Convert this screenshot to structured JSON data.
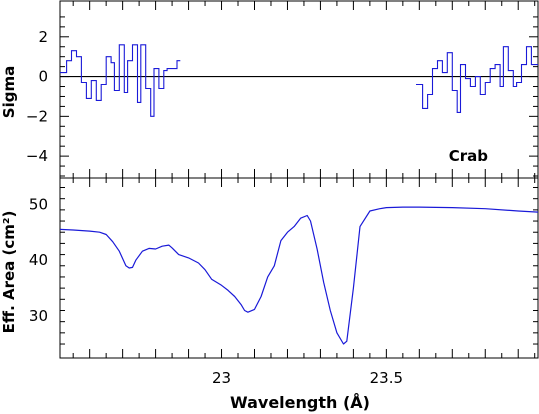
{
  "chart_data": [
    {
      "type": "line",
      "step": true,
      "ylabel": "Sigma",
      "xlabel": "",
      "ylim": [
        -5.1,
        3.8
      ],
      "xlim": [
        22.51,
        23.96
      ],
      "yticks": [
        "2",
        "0",
        "−2",
        "−4"
      ],
      "ytick_values": [
        2,
        0,
        -2,
        -4
      ],
      "annotation": "Crab",
      "annotation_position": "bottom-right",
      "zero_line": 0,
      "color": "#1a1ad8",
      "segments": [
        {
          "x": [
            22.52,
            22.54,
            22.55,
            22.57,
            22.58,
            22.6,
            22.61,
            22.63,
            22.64,
            22.66,
            22.67,
            22.68,
            22.7,
            22.71,
            22.72,
            22.74,
            22.75,
            22.76,
            22.78,
            22.79,
            22.8,
            22.82,
            22.83,
            22.84,
            22.86,
            22.87
          ],
          "y": [
            0.2,
            0.8,
            1.3,
            1.0,
            -0.3,
            -1.1,
            -0.2,
            -1.2,
            -0.4,
            1.0,
            0.7,
            -0.7,
            1.6,
            -0.8,
            0.8,
            1.6,
            -1.3,
            1.6,
            -0.6,
            -2.0,
            0.4,
            -0.6,
            0.3,
            0.4,
            0.4,
            0.8
          ]
        },
        {
          "x": [
            23.6,
            23.62,
            23.63,
            23.65,
            23.66,
            23.68,
            23.69,
            23.71,
            23.72,
            23.73,
            23.75,
            23.76,
            23.78,
            23.79,
            23.81,
            23.82,
            23.84,
            23.85,
            23.86,
            23.88,
            23.89,
            23.9,
            23.92,
            23.93,
            23.95
          ],
          "y": [
            -0.4,
            -1.6,
            -0.9,
            0.4,
            0.8,
            0.2,
            1.2,
            -0.7,
            -1.8,
            0.6,
            -0.1,
            -0.5,
            0.0,
            -0.9,
            -0.3,
            0.4,
            0.6,
            -0.5,
            1.5,
            0.3,
            -0.5,
            -0.3,
            0.6,
            1.5,
            0.6
          ]
        }
      ]
    },
    {
      "type": "line",
      "xlabel": "Wavelength (Å)",
      "ylabel": "Eff. Area (cm²)",
      "ylim": [
        22.5,
        54.7
      ],
      "xlim": [
        22.51,
        23.96
      ],
      "xticks": [
        "23",
        "23.5"
      ],
      "xtick_values": [
        23.0,
        23.5
      ],
      "yticks": [
        "50",
        "40",
        "30"
      ],
      "ytick_values": [
        50,
        40,
        30
      ],
      "color": "#1a1ad8",
      "x": [
        22.51,
        22.55,
        22.6,
        22.63,
        22.65,
        22.67,
        22.69,
        22.7,
        22.71,
        22.72,
        22.73,
        22.74,
        22.76,
        22.78,
        22.8,
        22.82,
        22.84,
        22.85,
        22.87,
        22.9,
        22.93,
        22.95,
        22.97,
        23.0,
        23.02,
        23.04,
        23.06,
        23.07,
        23.08,
        23.1,
        23.12,
        23.14,
        23.16,
        23.18,
        23.2,
        23.22,
        23.24,
        23.26,
        23.27,
        23.29,
        23.31,
        23.33,
        23.35,
        23.37,
        23.38,
        23.4,
        23.42,
        23.45,
        23.48,
        23.5,
        23.55,
        23.6,
        23.7,
        23.8,
        23.9,
        23.96
      ],
      "y": [
        45.5,
        45.4,
        45.2,
        45.0,
        44.6,
        43.3,
        41.6,
        40.3,
        39.0,
        38.6,
        38.7,
        40.0,
        41.6,
        42.1,
        42.0,
        42.5,
        42.7,
        42.2,
        41.0,
        40.4,
        39.5,
        38.3,
        36.6,
        35.5,
        34.6,
        33.5,
        32.0,
        31.0,
        30.7,
        31.2,
        33.5,
        37.0,
        39.0,
        43.5,
        45.0,
        46.0,
        47.5,
        48.0,
        47.0,
        42.0,
        36.0,
        31.0,
        27.0,
        25.0,
        25.5,
        35.0,
        46.0,
        48.8,
        49.2,
        49.4,
        49.5,
        49.5,
        49.4,
        49.2,
        48.8,
        48.6
      ]
    }
  ]
}
